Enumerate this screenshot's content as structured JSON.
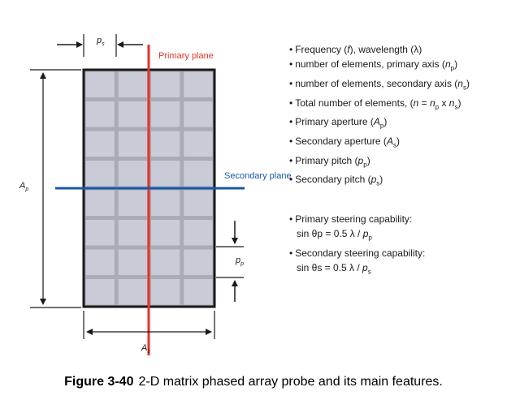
{
  "diagram": {
    "labels": {
      "ps_left": "p",
      "ps_left_sub": "s",
      "ap_left": "A",
      "ap_left_sub": "p",
      "as_bottom": "A",
      "as_bottom_sub": "s",
      "pp_right": "p",
      "pp_right_sub": "p",
      "primary_plane": "Primary plane",
      "secondary_plane": "Secondary plane"
    },
    "grid": {
      "columns": 4,
      "rows": 8
    },
    "colors": {
      "cell": "#c9ccd6",
      "gridline": "#a9acb4",
      "border": "#1a1a1a",
      "primary_plane": "#e6332a",
      "secondary_plane": "#1a57a8",
      "primary_label": "#e6332a",
      "secondary_label": "#1a57a8"
    }
  },
  "features": [
    "Frequency (f), wavelength (λ)",
    "number of elements, primary axis (np)",
    "number of elements, secondary axis (ns)",
    "Total number of elements, (n = np x ns)",
    "Primary aperture (Ap)",
    "Secondary aperture (As)",
    "Primary pitch (pp)",
    "Secondary pitch (ps)"
  ],
  "steering": {
    "primary_title": "Primary steering capability:",
    "primary_formula": "sin θp = 0.5 λ / pp",
    "secondary_title": "Secondary steering capability:",
    "secondary_formula": "sin θs = 0.5 λ / ps"
  },
  "caption": {
    "number": "Figure 3-40",
    "text": "2-D matrix phased array probe and its main features."
  }
}
